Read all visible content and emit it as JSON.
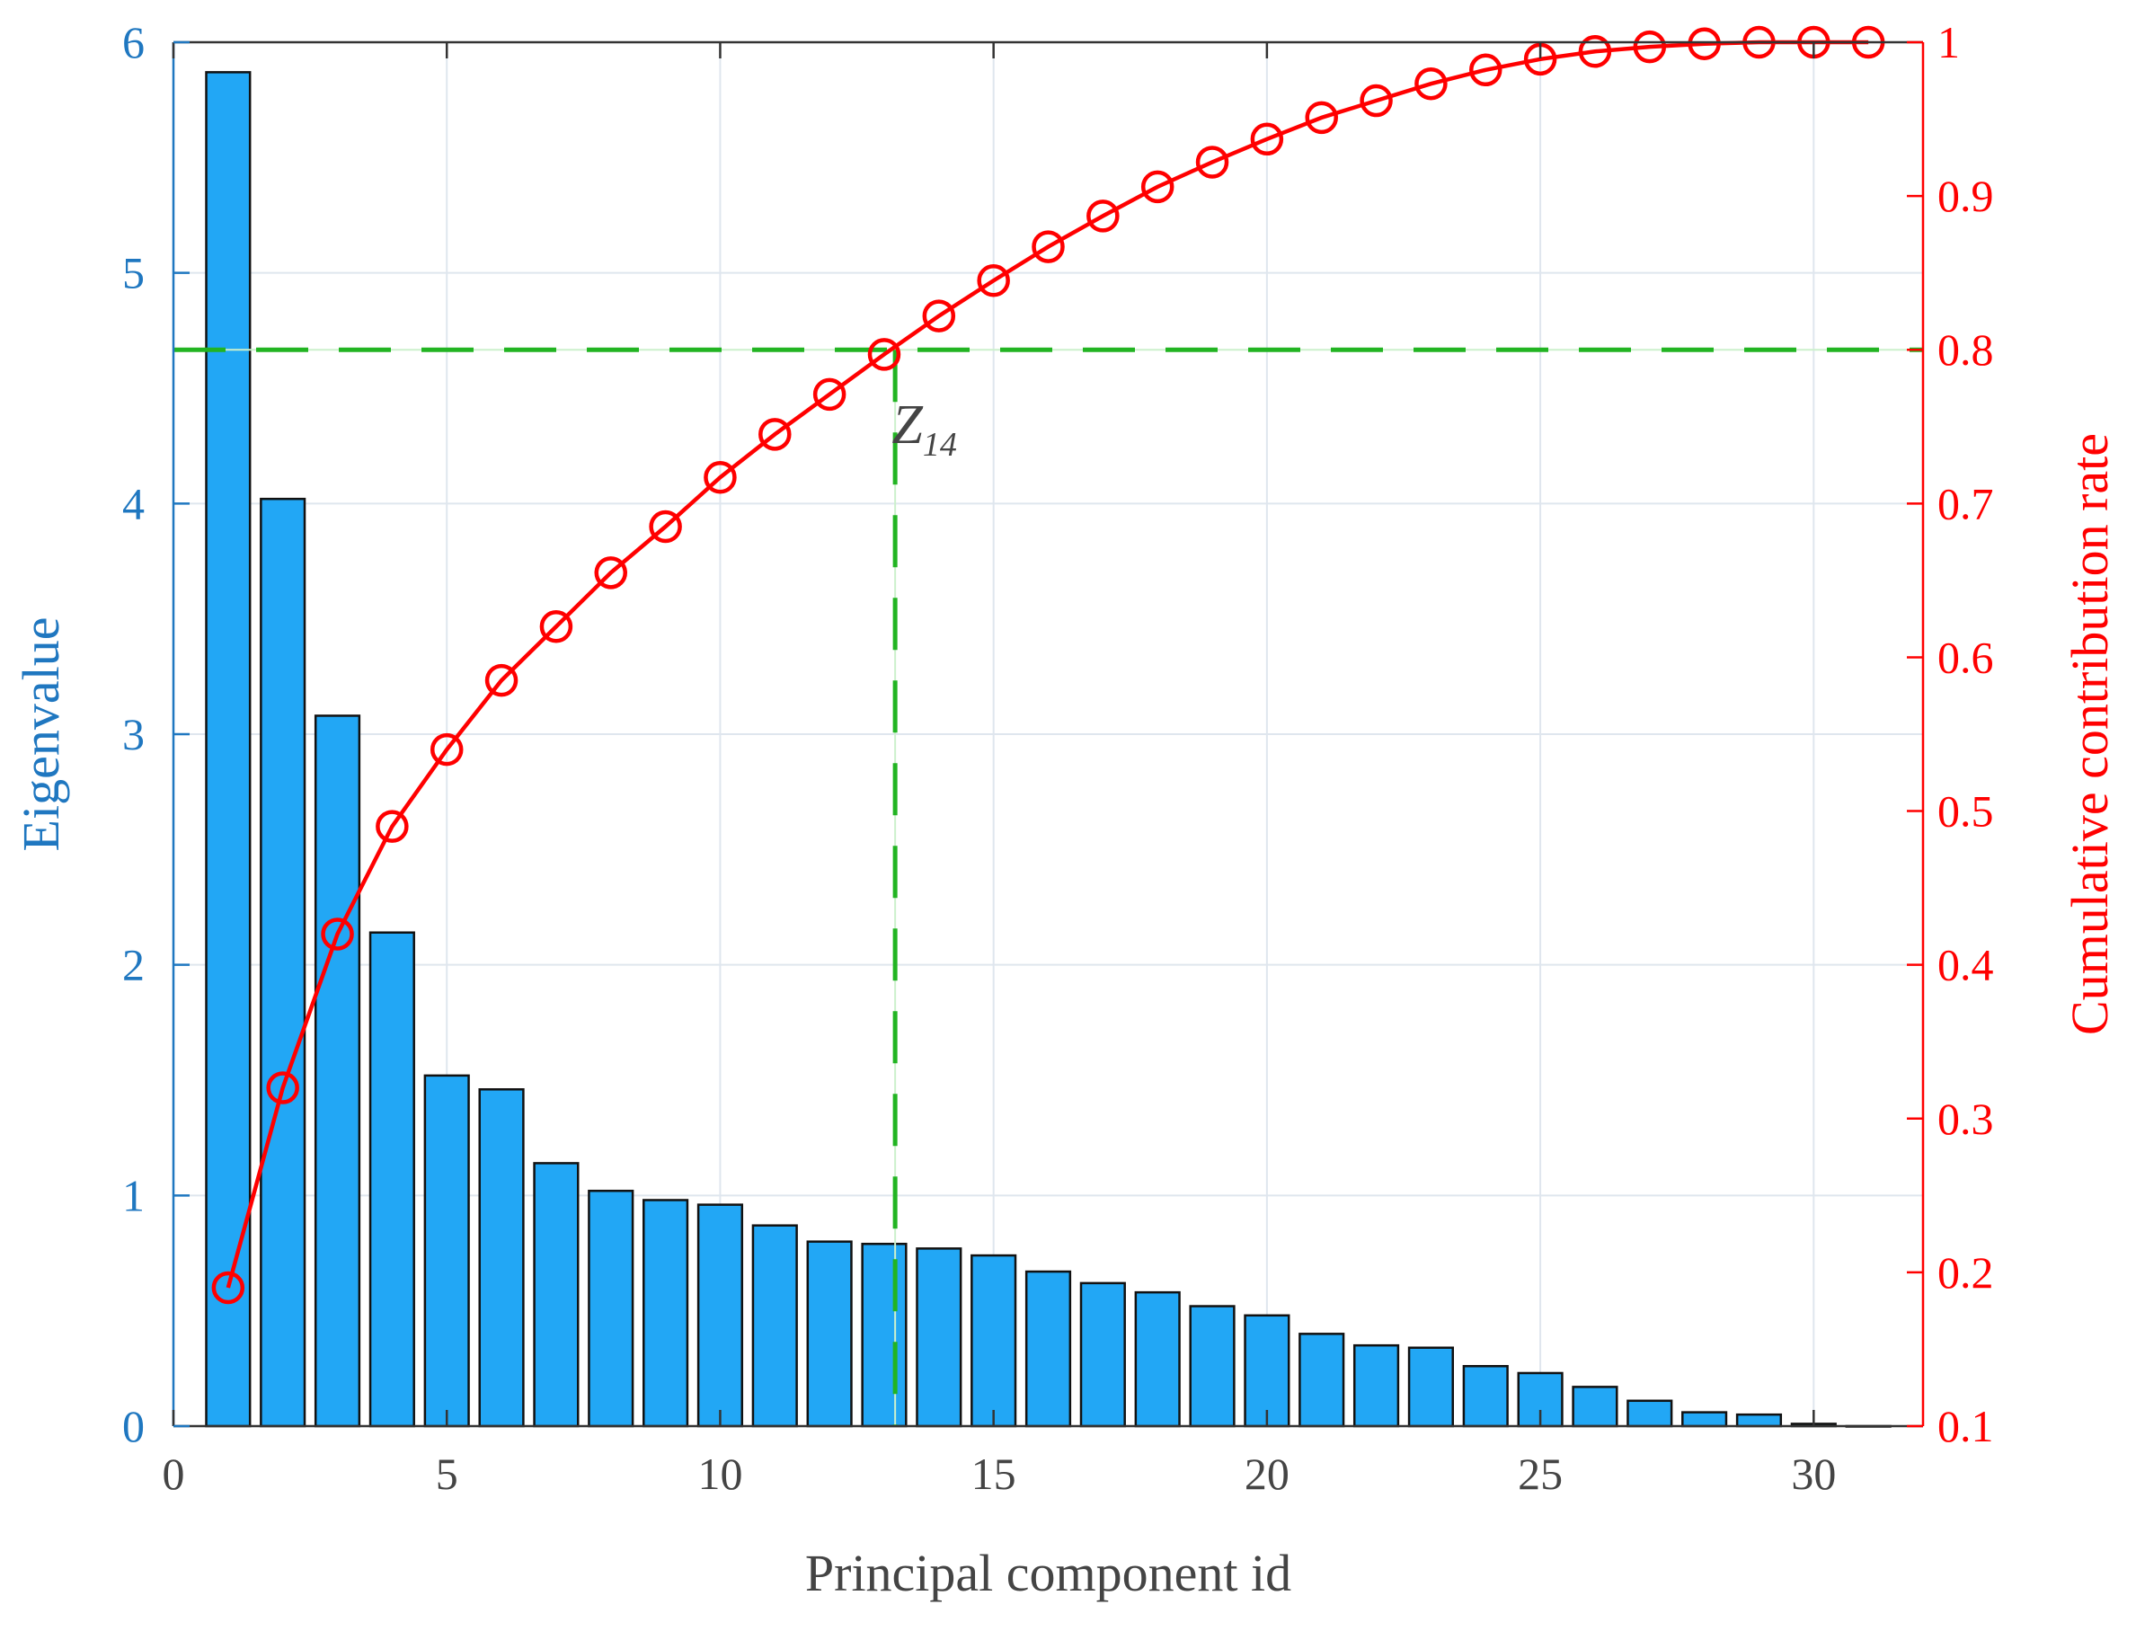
{
  "chart_data": {
    "type": "bar+line",
    "xlabel": "Principal component id",
    "ylabel_left": "Eigenvalue",
    "ylabel_right": "Cumulative contribution rate",
    "xlim": [
      0,
      32
    ],
    "ylim_left": [
      0,
      6
    ],
    "ylim_right": [
      0.1,
      1
    ],
    "xticks": [
      "0",
      "5",
      "10",
      "15",
      "20",
      "25",
      "30"
    ],
    "yticks_left": [
      "0",
      "1",
      "2",
      "3",
      "4",
      "5",
      "6"
    ],
    "yticks_right": [
      "0.1",
      "0.2",
      "0.3",
      "0.4",
      "0.5",
      "0.6",
      "0.7",
      "0.8",
      "0.9",
      "1"
    ],
    "grid": true,
    "x": [
      1,
      2,
      3,
      4,
      5,
      6,
      7,
      8,
      9,
      10,
      11,
      12,
      13,
      14,
      15,
      16,
      17,
      18,
      19,
      20,
      21,
      22,
      23,
      24,
      25,
      26,
      27,
      28,
      29,
      30,
      31
    ],
    "series": [
      {
        "type": "bar",
        "axis": "left",
        "values": [
          5.87,
          4.02,
          3.08,
          2.14,
          1.52,
          1.46,
          1.14,
          1.02,
          0.98,
          0.96,
          0.87,
          0.8,
          0.79,
          0.77,
          0.74,
          0.67,
          0.62,
          0.58,
          0.52,
          0.48,
          0.4,
          0.35,
          0.34,
          0.26,
          0.23,
          0.17,
          0.11,
          0.06,
          0.05,
          0.01,
          0.0
        ],
        "color": "#22a7f5"
      },
      {
        "type": "line",
        "axis": "right",
        "marker": "circle",
        "values": [
          0.19,
          0.32,
          0.42,
          0.49,
          0.54,
          0.585,
          0.62,
          0.655,
          0.685,
          0.717,
          0.745,
          0.771,
          0.797,
          0.822,
          0.845,
          0.867,
          0.887,
          0.906,
          0.922,
          0.937,
          0.951,
          0.962,
          0.973,
          0.982,
          0.989,
          0.994,
          0.997,
          0.999,
          1.0,
          1.0,
          1.0
        ],
        "color": "#ff0000"
      }
    ],
    "threshold": {
      "right_value": 0.8,
      "x": 13.2,
      "color": "#22b422"
    },
    "annotation": {
      "text": "Z",
      "subscript": "14",
      "x": 13.5,
      "right_value": 0.75
    },
    "colors": {
      "left_axis": "#1f77c0",
      "right_axis": "#ff0000",
      "grid": "#dfe6ee",
      "frame": "#333333"
    }
  }
}
